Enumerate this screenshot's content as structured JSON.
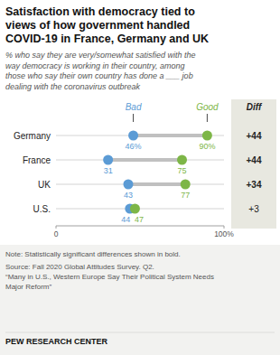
{
  "chart_data": {
    "type": "dumbbell",
    "title": "Satisfaction with democracy tied to\nviews of how government handled\nCOVID-19 in France, Germany and UK",
    "subtitle": "% who say they are very/somewhat satisfied with the\nway democracy is working in their country, among\nthose who say their own country has done a ___ job\ndealing with the coronavirus outbreak",
    "categories": [
      "Germany",
      "France",
      "UK",
      "U.S."
    ],
    "series": [
      {
        "name": "Bad",
        "color": "#5b9bd5",
        "values": [
          46,
          31,
          43,
          44
        ],
        "value_labels": [
          "46%",
          "31",
          "43",
          "44"
        ]
      },
      {
        "name": "Good",
        "color": "#7db647",
        "values": [
          90,
          75,
          77,
          47
        ],
        "value_labels": [
          "90%",
          "75",
          "77",
          "47"
        ]
      },
      {
        "name": "Diff",
        "type": "text",
        "values": [
          44,
          44,
          34,
          3
        ],
        "value_labels": [
          "+44",
          "+44",
          "+34",
          "+3"
        ],
        "significant": [
          true,
          true,
          true,
          false
        ]
      }
    ],
    "xlim": [
      0,
      100
    ],
    "xticks": [
      0,
      {
        "value": 100,
        "label": "100%"
      }
    ],
    "data_labels": true,
    "grid": false,
    "annotations": [
      "Note: Statistically significant differences shown in bold.",
      "Source: Fall 2020 Global Attitudes Survey. Q2.\n“Many in U.S., Western Europe Say Their Political System Needs\nMajor Reform”",
      "PEW RESEARCH CENTER"
    ]
  }
}
